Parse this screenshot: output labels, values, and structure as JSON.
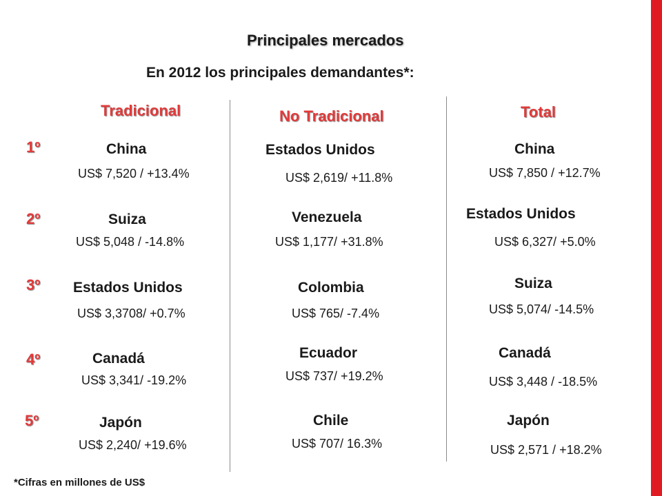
{
  "title": "Principales mercados",
  "subtitle": "En 2012 los principales demandantes*:",
  "columns": {
    "tradicional": "Tradicional",
    "no_tradicional": "No Tradicional",
    "total": "Total"
  },
  "ranks": [
    "1º",
    "2º",
    "3º",
    "4º",
    "5º"
  ],
  "tradicional": [
    {
      "country": "China",
      "value": "US$ 7,520 / +13.4%"
    },
    {
      "country": "Suiza",
      "value": "US$ 5,048 / -14.8%"
    },
    {
      "country": "Estados Unidos",
      "value": "US$ 3,3708/ +0.7%"
    },
    {
      "country": "Canadá",
      "value": "US$ 3,341/ -19.2%"
    },
    {
      "country": "Japón",
      "value": "US$ 2,240/ +19.6%"
    }
  ],
  "no_tradicional": [
    {
      "country": "Estados Unidos",
      "value": "US$ 2,619/ +11.8%"
    },
    {
      "country": "Venezuela",
      "value": "US$ 1,177/ +31.8%"
    },
    {
      "country": "Colombia",
      "value": "US$ 765/ -7.4%"
    },
    {
      "country": "Ecuador",
      "value": "US$ 737/ +19.2%"
    },
    {
      "country": "Chile",
      "value": "US$ 707/ 16.3%"
    }
  ],
  "total": [
    {
      "country": "China",
      "value": "US$ 7,850 / +12.7%"
    },
    {
      "country": "Estados Unidos",
      "value": "US$ 6,327/ +5.0%"
    },
    {
      "country": "Suiza",
      "value": "US$ 5,074/ -14.5%"
    },
    {
      "country": "Canadá",
      "value": "US$ 3,448 / -18.5%"
    },
    {
      "country": "Japón",
      "value": "US$ 2,571 / +18.2%"
    }
  ],
  "footnote": "*Cifras en millones de US$",
  "colors": {
    "accent": "#e23a3a",
    "side_bar": "#e11b22"
  }
}
